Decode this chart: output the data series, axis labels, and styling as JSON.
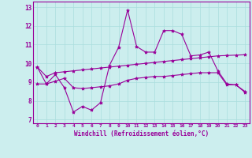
{
  "x": [
    0,
    1,
    2,
    3,
    4,
    5,
    6,
    7,
    8,
    9,
    10,
    11,
    12,
    13,
    14,
    15,
    16,
    17,
    18,
    19,
    20,
    21,
    22,
    23
  ],
  "line1": [
    9.8,
    8.9,
    9.4,
    8.7,
    7.4,
    7.7,
    7.5,
    7.9,
    9.9,
    10.85,
    12.85,
    10.9,
    10.6,
    10.6,
    11.75,
    11.75,
    11.55,
    10.4,
    10.45,
    10.6,
    9.6,
    8.9,
    8.85,
    8.5
  ],
  "line2": [
    9.8,
    9.3,
    9.5,
    9.55,
    9.6,
    9.65,
    9.7,
    9.75,
    9.8,
    9.85,
    9.9,
    9.95,
    10.0,
    10.05,
    10.1,
    10.15,
    10.2,
    10.25,
    10.3,
    10.35,
    10.4,
    10.42,
    10.44,
    10.46
  ],
  "line3": [
    8.9,
    8.9,
    9.05,
    9.2,
    8.7,
    8.65,
    8.7,
    8.75,
    8.8,
    8.9,
    9.1,
    9.2,
    9.25,
    9.3,
    9.3,
    9.35,
    9.4,
    9.45,
    9.5,
    9.5,
    9.5,
    8.85,
    8.85,
    8.45
  ],
  "line_color": "#990099",
  "bg_color": "#cceeee",
  "grid_color": "#aadddd",
  "ylabel_vals": [
    7,
    8,
    9,
    10,
    11,
    12,
    13
  ],
  "xlabel_vals": [
    0,
    1,
    2,
    3,
    4,
    5,
    6,
    7,
    8,
    9,
    10,
    11,
    12,
    13,
    14,
    15,
    16,
    17,
    18,
    19,
    20,
    21,
    22,
    23
  ],
  "ylim": [
    6.8,
    13.3
  ],
  "xlim": [
    -0.5,
    23.5
  ],
  "xlabel": "Windchill (Refroidissement éolien,°C)",
  "marker": "*",
  "markersize": 3,
  "linewidth": 0.8
}
